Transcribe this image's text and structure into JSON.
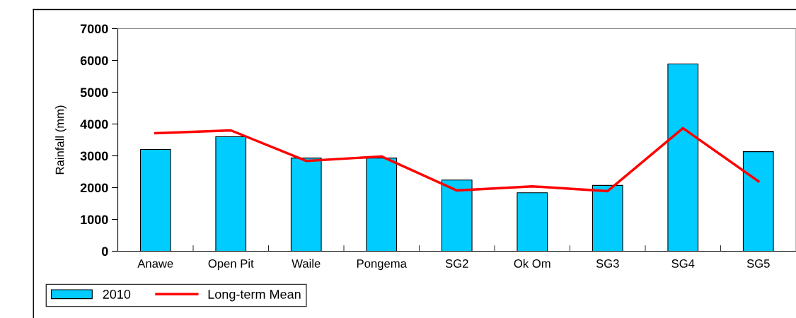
{
  "chart_data": {
    "type": "bar",
    "ylabel": "Rainfall (mm)",
    "categories": [
      "Anawe",
      "Open Pit",
      "Waile",
      "Pongema",
      "SG2",
      "Ok Om",
      "SG3",
      "SG4",
      "SG5"
    ],
    "series": [
      {
        "name": "2010",
        "color": "#00ccff",
        "values": [
          3200,
          3600,
          2930,
          2930,
          2240,
          1840,
          2070,
          5890,
          3130
        ]
      },
      {
        "name": "Long-term Mean",
        "type": "line",
        "color": "#ff0000",
        "values": [
          3710,
          3800,
          2840,
          2980,
          1910,
          2040,
          1890,
          3870,
          2200
        ]
      }
    ],
    "ylim": [
      0,
      7000
    ],
    "yticks": [
      0,
      1000,
      2000,
      3000,
      4000,
      5000,
      6000,
      7000
    ],
    "grid": false,
    "legend": "bottom left",
    "marker": "none",
    "line_style": "solid"
  }
}
